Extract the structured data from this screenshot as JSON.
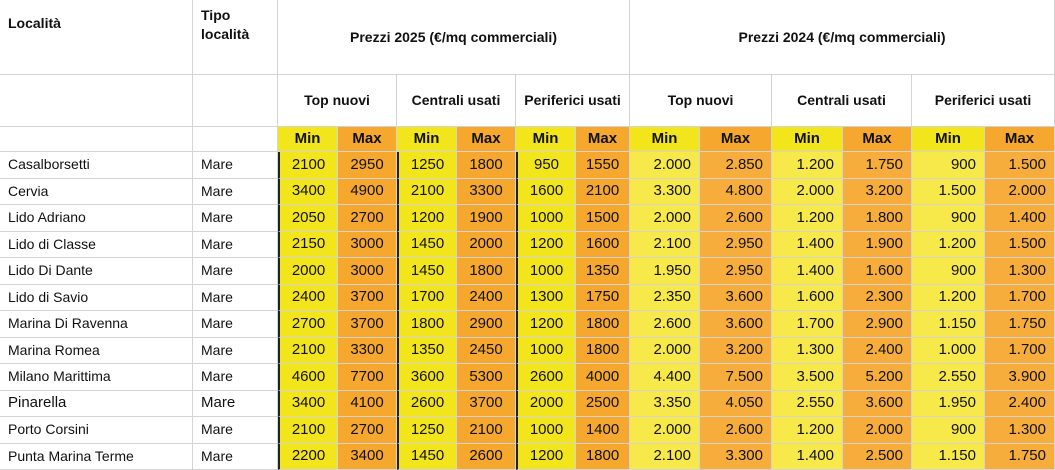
{
  "header": {
    "col_localita": "Località",
    "col_tipo": "Tipo località",
    "group_2025": "Prezzi 2025 (€/mq commerciali)",
    "group_2024": "Prezzi 2024 (€/mq commerciali)",
    "subgroups_2025": [
      "Top nuovi",
      "Centrali usati",
      "Periferici usati"
    ],
    "subgroups_2024": [
      "Top nuovi",
      "Centrali usati",
      "Periferici usati"
    ],
    "min_max": [
      "Min",
      "Max",
      "Min",
      "Max",
      "Min",
      "Max",
      "Min",
      "Max",
      "Min",
      "Max",
      "Min",
      "Max"
    ]
  },
  "rows": [
    {
      "name": "Casalborsetti",
      "type": "Mare",
      "values": [
        "2100",
        "2950",
        "1250",
        "1800",
        "950",
        "1550",
        "2.000",
        "2.850",
        "1.200",
        "1.750",
        "900",
        "1.500"
      ]
    },
    {
      "name": "Cervia",
      "type": "Mare",
      "values": [
        "3400",
        "4900",
        "2100",
        "3300",
        "1600",
        "2100",
        "3.300",
        "4.800",
        "2.000",
        "3.200",
        "1.500",
        "2.000"
      ]
    },
    {
      "name": "Lido Adriano",
      "type": "Mare",
      "values": [
        "2050",
        "2700",
        "1200",
        "1900",
        "1000",
        "1500",
        "2.000",
        "2.600",
        "1.200",
        "1.800",
        "900",
        "1.400"
      ]
    },
    {
      "name": "Lido di Classe",
      "type": "Mare",
      "values": [
        "2150",
        "3000",
        "1450",
        "2000",
        "1200",
        "1600",
        "2.100",
        "2.950",
        "1.400",
        "1.900",
        "1.200",
        "1.500"
      ]
    },
    {
      "name": "Lido Di Dante",
      "type": "Mare",
      "values": [
        "2000",
        "3000",
        "1450",
        "1800",
        "1000",
        "1350",
        "1.950",
        "2.950",
        "1.400",
        "1.600",
        "900",
        "1.300"
      ]
    },
    {
      "name": "Lido di Savio",
      "type": "Mare",
      "values": [
        "2400",
        "3700",
        "1700",
        "2400",
        "1300",
        "1750",
        "2.350",
        "3.600",
        "1.600",
        "2.300",
        "1.200",
        "1.700"
      ]
    },
    {
      "name": "Marina Di Ravenna",
      "type": "Mare",
      "values": [
        "2700",
        "3700",
        "1800",
        "2900",
        "1200",
        "1800",
        "2.600",
        "3.600",
        "1.700",
        "2.900",
        "1.150",
        "1.750"
      ]
    },
    {
      "name": "Marina Romea",
      "type": "Mare",
      "values": [
        "2100",
        "3300",
        "1350",
        "2450",
        "1000",
        "1800",
        "2.000",
        "3.200",
        "1.300",
        "2.400",
        "1.000",
        "1.700"
      ]
    },
    {
      "name": "Milano Marittima",
      "type": "Mare",
      "values": [
        "4600",
        "7700",
        "3600",
        "5300",
        "2600",
        "4000",
        "4.400",
        "7.500",
        "3.500",
        "5.200",
        "2.550",
        "3.900"
      ]
    },
    {
      "name": "Pinarella",
      "type": "Mare",
      "values": [
        "3400",
        "4100",
        "2600",
        "3700",
        "2000",
        "2500",
        "3.350",
        "4.050",
        "2.550",
        "3.600",
        "1.950",
        "2.400"
      ]
    },
    {
      "name": "Porto Corsini",
      "type": "Mare",
      "values": [
        "2100",
        "2700",
        "1250",
        "2100",
        "1000",
        "1400",
        "2.000",
        "2.600",
        "1.200",
        "2.000",
        "900",
        "1.300"
      ]
    },
    {
      "name": "Punta Marina Terme",
      "type": "Mare",
      "values": [
        "2200",
        "3400",
        "1450",
        "2600",
        "1200",
        "1800",
        "2.100",
        "3.300",
        "1.400",
        "2.500",
        "1.150",
        "1.750"
      ]
    }
  ]
}
